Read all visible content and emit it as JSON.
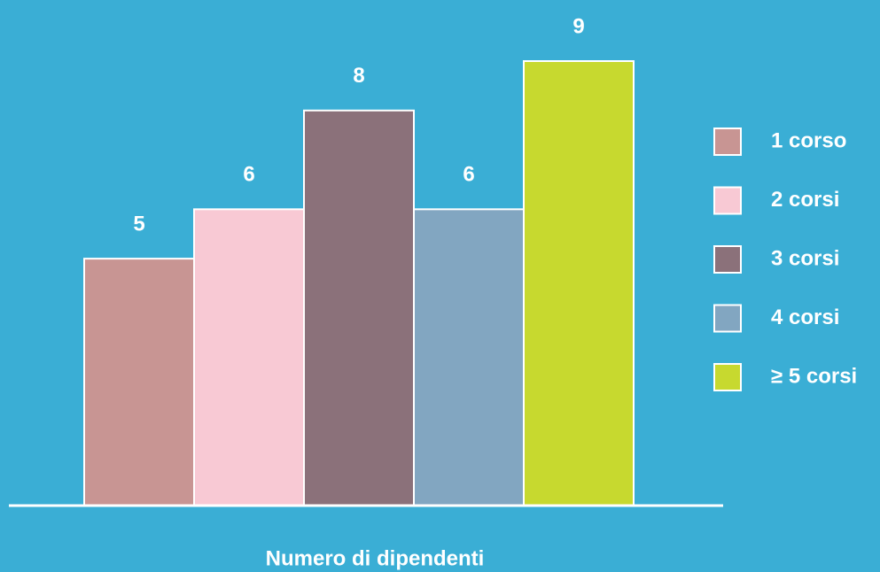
{
  "chart_data": {
    "type": "bar",
    "categories": [
      "1 corso",
      "2 corsi",
      "3 corsi",
      "4 corsi",
      "≥ 5 corsi"
    ],
    "values": [
      5,
      6,
      8,
      6,
      9
    ],
    "colors": [
      "#c89593",
      "#f8c9d4",
      "#8b717a",
      "#82a6c1",
      "#c7d92f"
    ],
    "xlabel": "Numero di dipendenti",
    "legend": "right"
  }
}
